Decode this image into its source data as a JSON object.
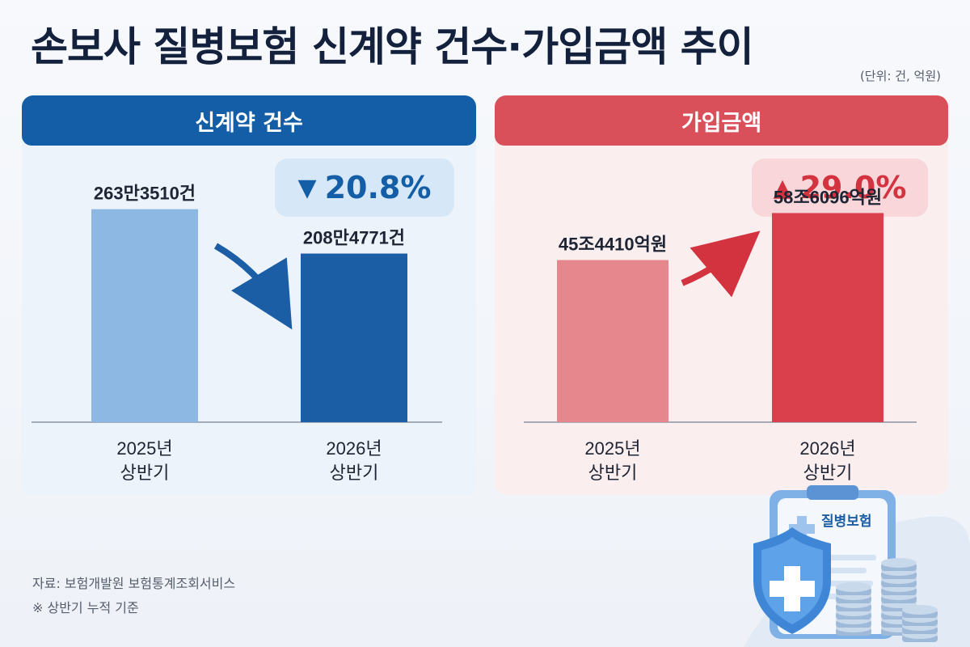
{
  "title": "손보사 질병보험 신계약 건수·가입금액 추이",
  "unit": "(단위: 건, 억원)",
  "chart_data": [
    {
      "type": "bar",
      "title": "신계약 건수",
      "categories": [
        [
          "2025년",
          "상반기"
        ],
        [
          "2026년",
          "상반기"
        ]
      ],
      "values": [
        2633510,
        2084771
      ],
      "value_labels": [
        "263만3510건",
        "208만4771건"
      ],
      "change_label": "20.8%",
      "change_icon": "down-triangle-icon",
      "colors": [
        "#8db8e4",
        "#1b5ea6"
      ],
      "ylim": [
        0,
        3200000
      ]
    },
    {
      "type": "bar",
      "title": "가입금액",
      "categories": [
        [
          "2025년",
          "상반기"
        ],
        [
          "2026년",
          "상반기"
        ]
      ],
      "values": [
        454410,
        586096
      ],
      "value_labels": [
        "45조4410억원",
        "58조6096억원"
      ],
      "change_label": "29.0%",
      "change_icon": "up-triangle-icon",
      "colors": [
        "#e6878d",
        "#d9404b"
      ],
      "ylim": [
        0,
        800000
      ]
    }
  ],
  "notes": {
    "source": "자료: 보험개발원 보험통계조회서비스",
    "basis": "※ 상반기 누적 기준"
  },
  "illustration": {
    "label": "질병보험",
    "icons": [
      "shield-cross-icon",
      "clipboard-icon",
      "coin-stack-icon"
    ]
  }
}
